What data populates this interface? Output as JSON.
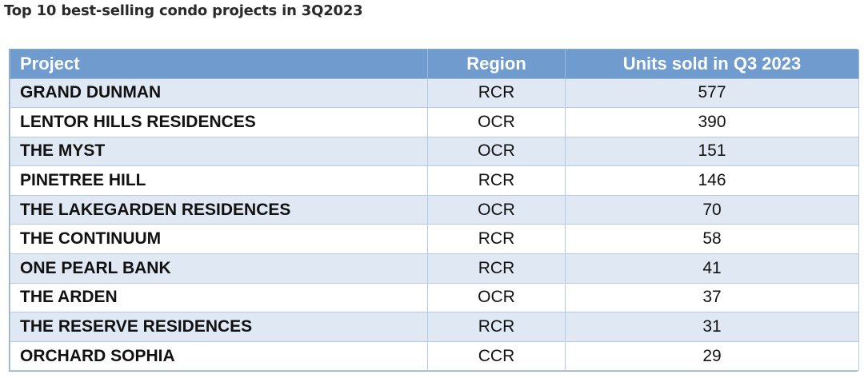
{
  "title": "Top 10 best-selling condo projects in 3Q2023",
  "table": {
    "headers": [
      "Project",
      "Region",
      "Units sold in Q3 2023"
    ],
    "rows": [
      {
        "project": "GRAND DUNMAN",
        "region": "RCR",
        "units": "577"
      },
      {
        "project": "LENTOR HILLS RESIDENCES",
        "region": "OCR",
        "units": "390"
      },
      {
        "project": "THE MYST",
        "region": "OCR",
        "units": "151"
      },
      {
        "project": "PINETREE HILL",
        "region": "RCR",
        "units": "146"
      },
      {
        "project": "THE LAKEGARDEN RESIDENCES",
        "region": "OCR",
        "units": "70"
      },
      {
        "project": "THE CONTINUUM",
        "region": "RCR",
        "units": "58"
      },
      {
        "project": "ONE PEARL BANK",
        "region": "RCR",
        "units": "41"
      },
      {
        "project": "THE ARDEN",
        "region": "OCR",
        "units": "37"
      },
      {
        "project": "THE RESERVE RESIDENCES",
        "region": "RCR",
        "units": "31"
      },
      {
        "project": "ORCHARD SOPHIA",
        "region": "CCR",
        "units": "29"
      }
    ]
  },
  "chart_data": {
    "type": "table",
    "title": "Top 10 best-selling condo projects in 3Q2023",
    "columns": [
      "Project",
      "Region",
      "Units sold in Q3 2023"
    ],
    "rows": [
      [
        "GRAND DUNMAN",
        "RCR",
        577
      ],
      [
        "LENTOR HILLS RESIDENCES",
        "OCR",
        390
      ],
      [
        "THE MYST",
        "OCR",
        151
      ],
      [
        "PINETREE HILL",
        "RCR",
        146
      ],
      [
        "THE LAKEGARDEN RESIDENCES",
        "OCR",
        70
      ],
      [
        "THE CONTINUUM",
        "RCR",
        58
      ],
      [
        "ONE PEARL BANK",
        "RCR",
        41
      ],
      [
        "THE ARDEN",
        "OCR",
        37
      ],
      [
        "THE RESERVE RESIDENCES",
        "RCR",
        31
      ],
      [
        "ORCHARD SOPHIA",
        "CCR",
        29
      ]
    ]
  },
  "colors": {
    "header_bg": "#6f9bcf",
    "header_text": "#ffffff",
    "band_row": "#dfe8f3",
    "plain_row": "#ffffff",
    "grid": "#b7cbe0"
  }
}
